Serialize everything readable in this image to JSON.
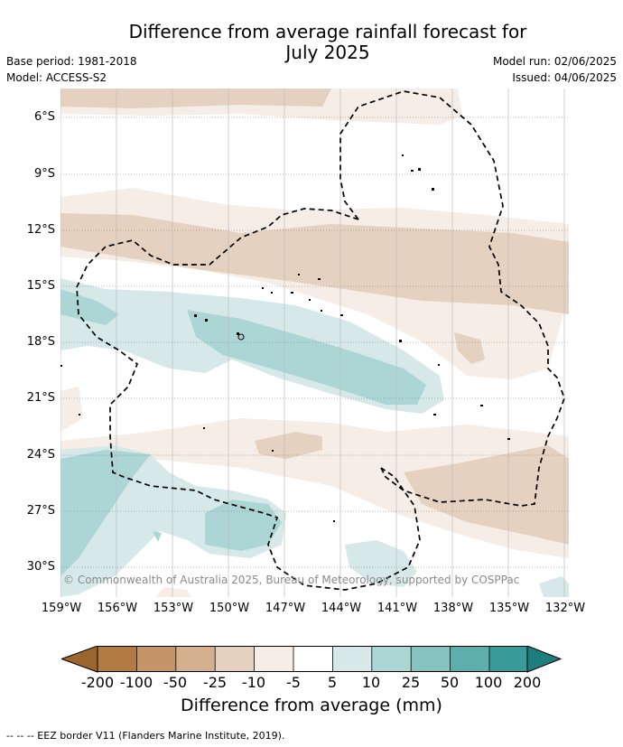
{
  "title": "Difference from average rainfall forecast for July 2025",
  "title_line1": "Difference from average rainfall forecast for",
  "title_line2": "July 2025",
  "meta_left": {
    "base_period": "Base period: 1981-2018",
    "model": "Model: ACCESS-S2"
  },
  "meta_right": {
    "model_run": "Model run: 02/06/2025",
    "issued": "Issued: 04/06/2025"
  },
  "copyright": "© Commonwealth of Australia 2025, Bureau of Meteorology, supported by COSPPac",
  "lat_labels": [
    "6°S",
    "9°S",
    "12°S",
    "15°S",
    "18°S",
    "21°S",
    "24°S",
    "27°S",
    "30°S"
  ],
  "lon_labels": [
    "159°W",
    "156°W",
    "153°W",
    "150°W",
    "147°W",
    "144°W",
    "141°W",
    "138°W",
    "135°W",
    "132°W"
  ],
  "colorbar": {
    "ticks": [
      "-200",
      "-100",
      "-50",
      "-25",
      "-10",
      "-5",
      "5",
      "10",
      "25",
      "50",
      "100",
      "200"
    ],
    "colors": [
      "#9c642f",
      "#b27b44",
      "#c59469",
      "#d4b08f",
      "#e4d1c0",
      "#f5ede6",
      "#ffffff",
      "#d6e9e8",
      "#acd6d5",
      "#86c2c0",
      "#5eaeac",
      "#389b99",
      "#1d7f7d"
    ],
    "label": "Difference from average (mm)"
  },
  "footnote": "--  --  -- EEZ border V11 (Flanders Marine Institute, 2019).",
  "palette": {
    "wet_light": "#d6e9e8",
    "wet_mid": "#acd6d5",
    "dry_light": "#f5ede6",
    "dry_mid": "#e4d1c0"
  }
}
